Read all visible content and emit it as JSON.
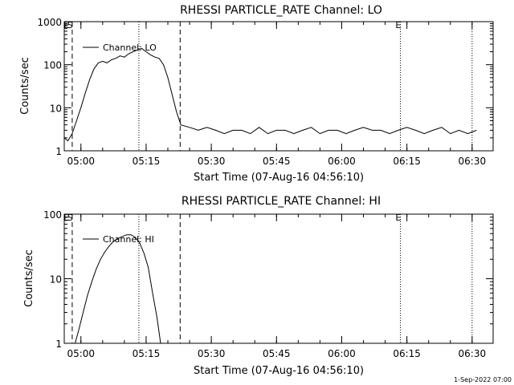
{
  "footer": "1-Sep-2022 07:00",
  "chart_data": [
    {
      "type": "line",
      "title": "RHESSI PARTICLE_RATE Channel: LO",
      "xlabel": "Start Time (07-Aug-16 04:56:10)",
      "ylabel": "Counts/sec",
      "yscale": "log",
      "ylim": [
        1,
        1000
      ],
      "xlim": [
        "04:56:10",
        "06:34:50"
      ],
      "yticks": [
        "1",
        "10",
        "100",
        "1000"
      ],
      "xticks": [
        "05:00",
        "05:15",
        "05:30",
        "05:45",
        "06:00",
        "06:15",
        "06:30"
      ],
      "legend": {
        "label": "Channel: LO",
        "placement": "top-left"
      },
      "flags": [
        {
          "label": "E",
          "time": "04:56:40"
        },
        {
          "label": "S",
          "time": "04:57:30"
        },
        {
          "label": "E",
          "time": "06:13:00"
        }
      ],
      "dashed_lines": [
        "04:58:00",
        "05:22:50"
      ],
      "dotted_lines": [
        "05:13:20",
        "06:13:30",
        "06:30:00"
      ],
      "series": [
        {
          "x": [
            "04:56:10",
            "04:57:00",
            "04:58:00",
            "04:59:00",
            "05:00:00",
            "05:01:00",
            "05:02:00",
            "05:03:00",
            "05:04:00",
            "05:05:00",
            "05:06:00",
            "05:07:00",
            "05:08:00",
            "05:09:00",
            "05:10:00",
            "05:11:00",
            "05:12:00",
            "05:13:00",
            "05:14:00",
            "05:15:00",
            "05:16:00",
            "05:17:00",
            "05:18:00",
            "05:19:00",
            "05:20:00",
            "05:21:00",
            "05:22:00",
            "05:23:00",
            "05:25:00",
            "05:27:00",
            "05:29:00",
            "05:31:00",
            "05:33:00",
            "05:35:00",
            "05:37:00",
            "05:39:00",
            "05:41:00",
            "05:43:00",
            "05:45:00",
            "05:47:00",
            "05:49:00",
            "05:51:00",
            "05:53:00",
            "05:55:00",
            "05:57:00",
            "05:59:00",
            "06:01:00",
            "06:03:00",
            "06:05:00",
            "06:07:00",
            "06:09:00",
            "06:11:00",
            "06:13:00",
            "06:15:00",
            "06:17:00",
            "06:19:00",
            "06:21:00",
            "06:23:00",
            "06:25:00",
            "06:27:00",
            "06:29:00",
            "06:31:00"
          ],
          "values": [
            2,
            1.7,
            2.5,
            5,
            10,
            22,
            45,
            80,
            110,
            120,
            110,
            130,
            140,
            160,
            150,
            180,
            200,
            220,
            240,
            200,
            170,
            150,
            140,
            100,
            50,
            20,
            8,
            4,
            3.5,
            3,
            3.5,
            3,
            2.5,
            3,
            3,
            2.5,
            3.5,
            2.5,
            3,
            3,
            2.5,
            3,
            3.5,
            2.5,
            3,
            3,
            2.5,
            3,
            3.5,
            3,
            3,
            2.5,
            3,
            3.5,
            3,
            2.5,
            3,
            3.5,
            2.5,
            3,
            2.5,
            3
          ]
        }
      ]
    },
    {
      "type": "line",
      "title": "RHESSI PARTICLE_RATE Channel: HI",
      "xlabel": "Start Time (07-Aug-16 04:56:10)",
      "ylabel": "Counts/sec",
      "yscale": "log",
      "ylim": [
        1,
        100
      ],
      "xlim": [
        "04:56:10",
        "06:34:50"
      ],
      "yticks": [
        "1",
        "10",
        "100"
      ],
      "xticks": [
        "05:00",
        "05:15",
        "05:30",
        "05:45",
        "06:00",
        "06:15",
        "06:30"
      ],
      "legend": {
        "label": "Channel: HI",
        "placement": "top-left"
      },
      "flags": [
        {
          "label": "E",
          "time": "04:56:40"
        },
        {
          "label": "S",
          "time": "04:57:30"
        },
        {
          "label": "E",
          "time": "06:13:00"
        }
      ],
      "dashed_lines": [
        "04:58:00",
        "05:22:50"
      ],
      "dotted_lines": [
        "05:13:20",
        "06:13:30",
        "06:30:00"
      ],
      "series": [
        {
          "x": [
            "04:58:40",
            "04:59:30",
            "05:00:30",
            "05:01:30",
            "05:02:30",
            "05:03:30",
            "05:04:30",
            "05:05:30",
            "05:06:30",
            "05:07:30",
            "05:08:30",
            "05:09:30",
            "05:10:30",
            "05:11:30",
            "05:12:30",
            "05:13:30",
            "05:14:30",
            "05:15:30",
            "05:16:30",
            "05:17:30",
            "05:18:20"
          ],
          "values": [
            1,
            1.6,
            3,
            5.5,
            9,
            14,
            20,
            26,
            32,
            38,
            42,
            45,
            48,
            48,
            44,
            36,
            25,
            15,
            6,
            2.5,
            1
          ]
        }
      ]
    }
  ]
}
